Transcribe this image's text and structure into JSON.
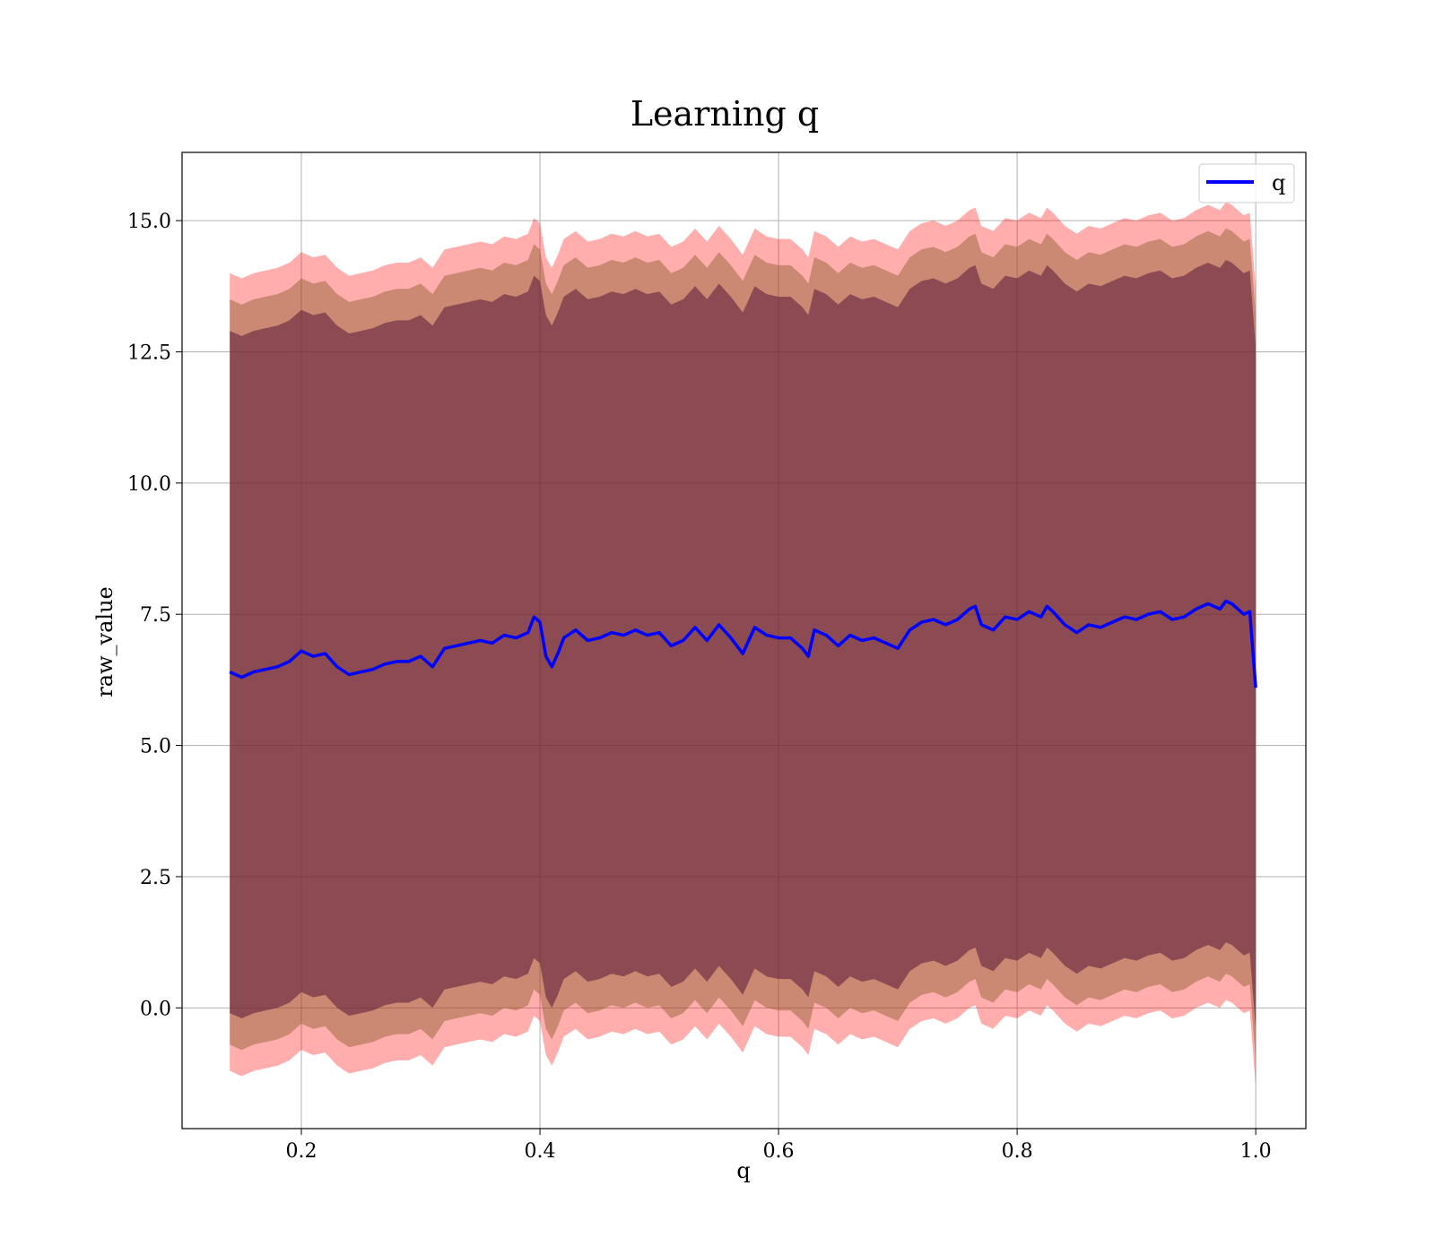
{
  "chart_data": {
    "type": "line",
    "title": "Learning q",
    "xlabel": "q",
    "ylabel": "raw_value",
    "xlim": [
      0.1,
      1.042
    ],
    "ylim": [
      -2.3,
      16.3
    ],
    "xticks": [
      0.2,
      0.4,
      0.6,
      0.8,
      1.0
    ],
    "xtick_labels": [
      "0.2",
      "0.4",
      "0.6",
      "0.8",
      "1.0"
    ],
    "yticks": [
      0.0,
      2.5,
      5.0,
      7.5,
      10.0,
      12.5,
      15.0
    ],
    "ytick_labels": [
      "0.0",
      "2.5",
      "5.0",
      "7.5",
      "10.0",
      "12.5",
      "15.0"
    ],
    "grid": true,
    "legend": {
      "placement": "top-right",
      "entries": [
        {
          "label": "q",
          "color": "#0000ff"
        }
      ]
    },
    "bands": [
      {
        "name": "outer",
        "color": "#ff0000",
        "opacity": 0.32,
        "half_width": 7.6
      },
      {
        "name": "middle",
        "color": "#8b5a2b",
        "opacity": 0.45,
        "half_width": 7.1
      },
      {
        "name": "inner",
        "color": "#5a1a3a",
        "opacity": 0.55,
        "half_width": 6.5
      }
    ],
    "series": [
      {
        "name": "q",
        "color": "#0000ff",
        "x": [
          0.14,
          0.15,
          0.16,
          0.17,
          0.18,
          0.19,
          0.2,
          0.21,
          0.22,
          0.23,
          0.24,
          0.25,
          0.26,
          0.27,
          0.28,
          0.29,
          0.3,
          0.31,
          0.32,
          0.33,
          0.34,
          0.35,
          0.36,
          0.37,
          0.38,
          0.39,
          0.395,
          0.4,
          0.405,
          0.41,
          0.415,
          0.42,
          0.43,
          0.44,
          0.45,
          0.46,
          0.47,
          0.48,
          0.49,
          0.5,
          0.51,
          0.52,
          0.53,
          0.54,
          0.55,
          0.56,
          0.57,
          0.58,
          0.59,
          0.6,
          0.61,
          0.62,
          0.625,
          0.63,
          0.64,
          0.65,
          0.66,
          0.67,
          0.68,
          0.69,
          0.7,
          0.71,
          0.72,
          0.73,
          0.74,
          0.75,
          0.76,
          0.765,
          0.77,
          0.78,
          0.79,
          0.8,
          0.81,
          0.82,
          0.825,
          0.83,
          0.84,
          0.85,
          0.86,
          0.87,
          0.88,
          0.89,
          0.9,
          0.91,
          0.92,
          0.93,
          0.94,
          0.95,
          0.96,
          0.97,
          0.975,
          0.98,
          0.99,
          0.995,
          1.0
        ],
        "y": [
          6.4,
          6.3,
          6.4,
          6.45,
          6.5,
          6.6,
          6.8,
          6.7,
          6.75,
          6.5,
          6.35,
          6.4,
          6.45,
          6.55,
          6.6,
          6.6,
          6.7,
          6.5,
          6.85,
          6.9,
          6.95,
          7.0,
          6.95,
          7.1,
          7.05,
          7.15,
          7.45,
          7.35,
          6.7,
          6.5,
          6.75,
          7.05,
          7.2,
          7.0,
          7.05,
          7.15,
          7.1,
          7.2,
          7.1,
          7.15,
          6.9,
          7.0,
          7.25,
          7.0,
          7.3,
          7.05,
          6.75,
          7.25,
          7.1,
          7.05,
          7.05,
          6.85,
          6.7,
          7.2,
          7.1,
          6.9,
          7.1,
          7.0,
          7.05,
          6.95,
          6.85,
          7.2,
          7.35,
          7.4,
          7.3,
          7.4,
          7.6,
          7.65,
          7.3,
          7.2,
          7.45,
          7.4,
          7.55,
          7.45,
          7.65,
          7.55,
          7.3,
          7.15,
          7.3,
          7.25,
          7.35,
          7.45,
          7.4,
          7.5,
          7.55,
          7.4,
          7.45,
          7.6,
          7.7,
          7.6,
          7.75,
          7.7,
          7.5,
          7.55,
          6.1
        ]
      }
    ]
  }
}
